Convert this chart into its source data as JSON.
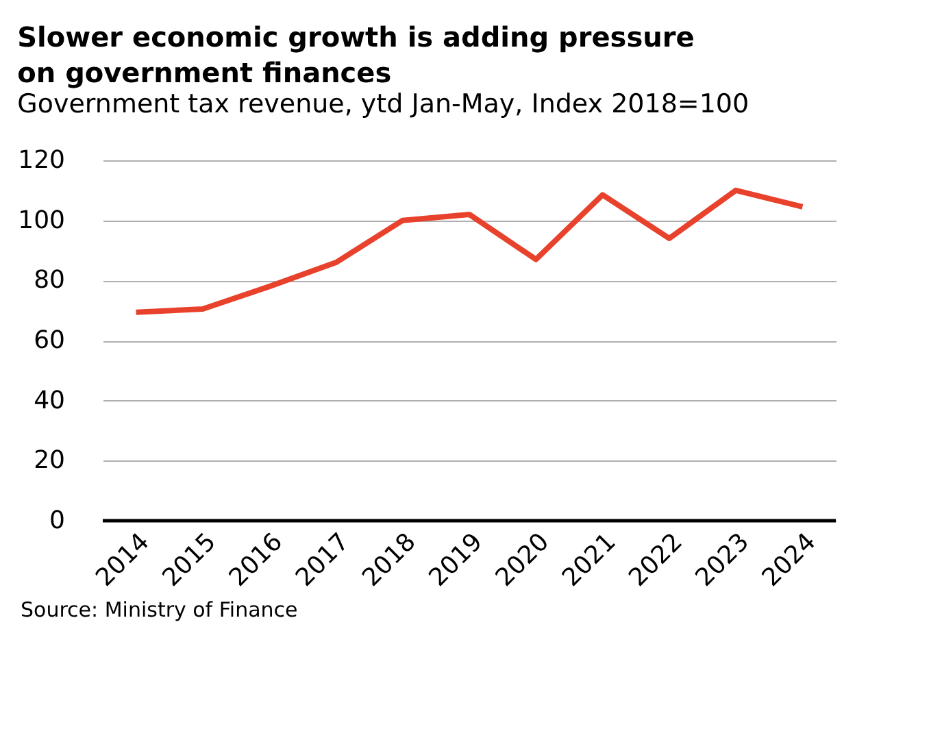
{
  "chart_data": {
    "type": "line",
    "title": [
      "Slower economic growth is adding pressure",
      "on government finances"
    ],
    "subtitle": "Government tax revenue, ytd Jan-May, Index 2018=100",
    "categories": [
      "2014",
      "2015",
      "2016",
      "2017",
      "2018",
      "2019",
      "2020",
      "2021",
      "2022",
      "2023",
      "2024"
    ],
    "series": [
      {
        "color": "#e8412c",
        "values": [
          69.4,
          70.5,
          78,
          86,
          100,
          102,
          87,
          108.5,
          94,
          110,
          104.5
        ]
      }
    ],
    "ylim": [
      0,
      120
    ],
    "yticks": [
      0,
      20,
      40,
      60,
      80,
      100,
      120
    ],
    "grid": "y",
    "legend": false,
    "marker": "none",
    "line_style": "solid",
    "annotations": [
      "Source: Ministry of Finance"
    ]
  }
}
